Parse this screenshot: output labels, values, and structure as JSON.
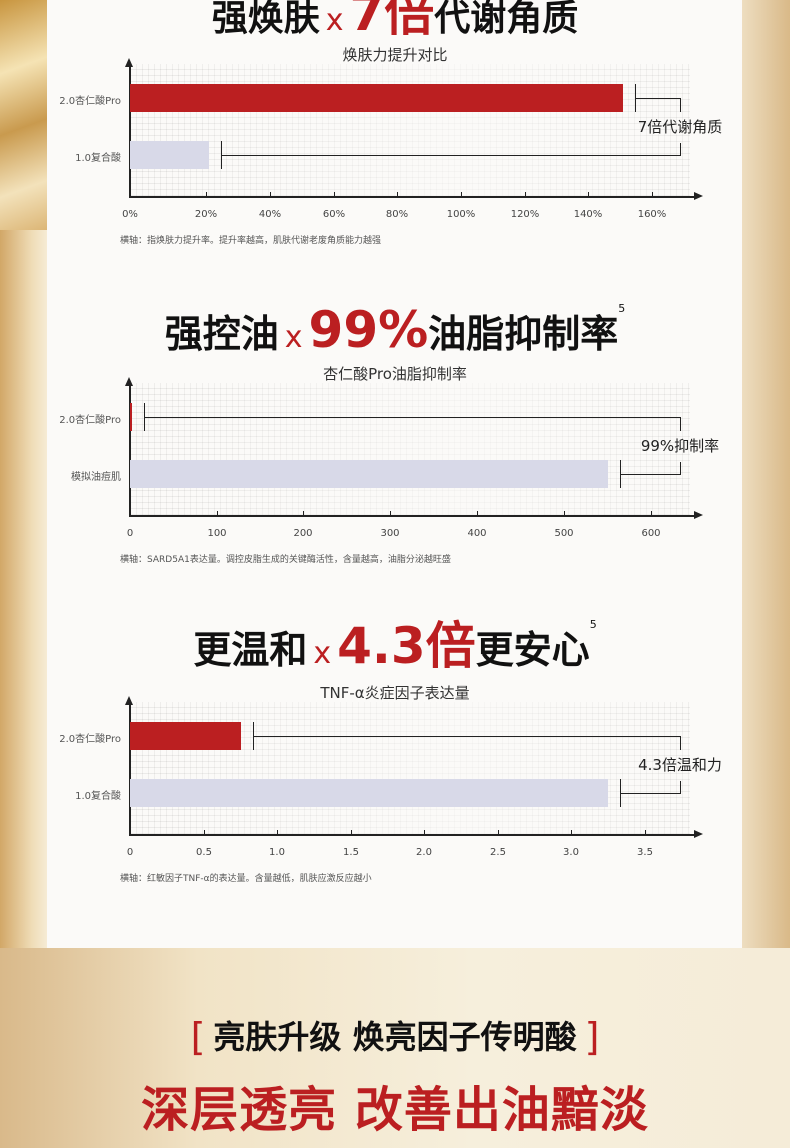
{
  "colors": {
    "accent_red": "#bb1f21",
    "bar_light": "#d8d9e8",
    "axis": "#222222"
  },
  "sections": [
    {
      "headline": {
        "pre": "强焕肤",
        "x": "x",
        "num": "7倍",
        "post": "代谢角质",
        "sup": ""
      },
      "footnote": "横轴：指焕肤力提升率。提升率越高，肌肤代谢老废角质能力越强",
      "annotation": "7倍代谢角质"
    },
    {
      "headline": {
        "pre": "强控油",
        "x": "x",
        "num": "99%",
        "post": "油脂抑制率",
        "sup": "5"
      },
      "footnote": "横轴：SARD5A1表达量。调控皮脂生成的关键酶活性，含量越高，油脂分泌越旺盛",
      "annotation": "99%抑制率"
    },
    {
      "headline": {
        "pre": "更温和",
        "x": "x",
        "num": "4.3倍",
        "post": "更安心",
        "sup": "5"
      },
      "footnote": "横轴：红敏因子TNF-α的表达量。含量越低，肌肤应激反应越小",
      "annotation": "4.3倍温和力"
    }
  ],
  "chart_data": [
    {
      "type": "bar",
      "orientation": "horizontal",
      "title": "焕肤力提升对比",
      "categories": [
        "2.0杏仁酸Pro",
        "1.0复合酸"
      ],
      "values": [
        151,
        21
      ],
      "bar_colors": [
        "#bb1f21",
        "#d8d9e8"
      ],
      "xticks": [
        "0%",
        "20%",
        "40%",
        "60%",
        "80%",
        "100%",
        "120%",
        "140%",
        "160%"
      ],
      "xtick_values": [
        0,
        20,
        40,
        60,
        80,
        100,
        120,
        140,
        160
      ],
      "xlim": [
        0,
        170
      ],
      "grid": true
    },
    {
      "type": "bar",
      "orientation": "horizontal",
      "title": "杏仁酸Pro油脂抑制率",
      "categories": [
        "2.0杏仁酸Pro",
        "模拟油痘肌"
      ],
      "values": [
        2,
        550
      ],
      "bar_colors": [
        "#bb1f21",
        "#d8d9e8"
      ],
      "xticks": [
        "0",
        "100",
        "200",
        "300",
        "400",
        "500",
        "600"
      ],
      "xtick_values": [
        0,
        100,
        200,
        300,
        400,
        500,
        600
      ],
      "xlim": [
        0,
        650
      ],
      "grid": true
    },
    {
      "type": "bar",
      "orientation": "horizontal",
      "title": "TNF-α炎症因子表达量",
      "categories": [
        "2.0杏仁酸Pro",
        "1.0复合酸"
      ],
      "values": [
        0.75,
        3.25
      ],
      "bar_colors": [
        "#bb1f21",
        "#d8d9e8"
      ],
      "xticks": [
        "0",
        "0.5",
        "1.0",
        "1.5",
        "2.0",
        "2.5",
        "3.0",
        "3.5"
      ],
      "xtick_values": [
        0,
        0.5,
        1.0,
        1.5,
        2.0,
        2.5,
        3.0,
        3.5
      ],
      "xlim": [
        0,
        3.85
      ],
      "grid": true
    }
  ],
  "footer": {
    "bracket_left": "[",
    "bracket_right": "]",
    "subtitle": "亮肤升级 焕亮因子传明酸",
    "slogan": "深层透亮 改善出油黯淡"
  }
}
